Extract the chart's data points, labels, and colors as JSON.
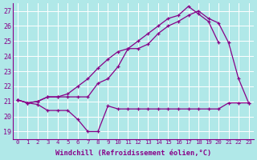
{
  "title": "",
  "xlabel": "Windchill (Refroidissement éolien,°C)",
  "background_color": "#b0e8e8",
  "grid_color": "#ffffff",
  "line_color": "#880088",
  "x": [
    0,
    1,
    2,
    3,
    4,
    5,
    6,
    7,
    8,
    9,
    10,
    11,
    12,
    13,
    14,
    15,
    16,
    17,
    18,
    19,
    20,
    21,
    22,
    23
  ],
  "line1": [
    21.1,
    20.9,
    20.8,
    20.4,
    20.4,
    20.4,
    19.8,
    19.0,
    19.0,
    20.7,
    20.5,
    20.5,
    20.5,
    20.5,
    20.5,
    20.5,
    20.5,
    20.5,
    20.5,
    20.5,
    20.5,
    20.9,
    20.9,
    20.9
  ],
  "line2": [
    21.1,
    20.9,
    21.0,
    21.3,
    21.3,
    21.5,
    22.0,
    22.5,
    23.2,
    23.8,
    24.3,
    24.5,
    25.0,
    25.5,
    26.0,
    26.5,
    26.7,
    27.3,
    26.8,
    26.3,
    24.9,
    null,
    null,
    null
  ],
  "line3": [
    21.1,
    20.9,
    21.0,
    21.3,
    21.3,
    21.3,
    21.3,
    21.3,
    22.2,
    22.5,
    23.3,
    24.5,
    24.5,
    24.8,
    25.5,
    26.0,
    26.3,
    26.7,
    27.0,
    26.5,
    26.2,
    24.9,
    22.5,
    20.9
  ],
  "ylim": [
    19,
    27
  ],
  "xlim": [
    0,
    23
  ],
  "yticks": [
    19,
    20,
    21,
    22,
    23,
    24,
    25,
    26,
    27
  ],
  "xticks": [
    0,
    1,
    2,
    3,
    4,
    5,
    6,
    7,
    8,
    9,
    10,
    11,
    12,
    13,
    14,
    15,
    16,
    17,
    18,
    19,
    20,
    21,
    22,
    23
  ]
}
